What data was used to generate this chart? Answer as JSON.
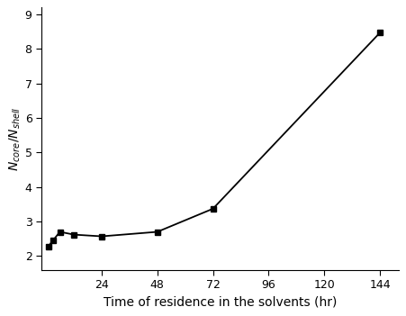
{
  "x": [
    1,
    3,
    6,
    12,
    24,
    48,
    72,
    144
  ],
  "y": [
    2.28,
    2.45,
    2.7,
    2.62,
    2.57,
    2.7,
    3.37,
    8.47
  ],
  "marker": "s",
  "markersize": 5,
  "linewidth": 1.3,
  "color": "black",
  "xlabel": "Time of residence in the solvents (hr)",
  "ylabel": "$\\mathit{N}_{core}$/$\\mathit{N}_{shell}$",
  "xlim": [
    -2,
    152
  ],
  "ylim": [
    1.6,
    9.2
  ],
  "xticks": [
    24,
    48,
    72,
    96,
    120,
    144
  ],
  "yticks": [
    2,
    3,
    4,
    5,
    6,
    7,
    8,
    9
  ],
  "xlabel_fontsize": 10,
  "ylabel_fontsize": 10,
  "tick_fontsize": 9,
  "figsize": [
    4.51,
    3.51
  ],
  "dpi": 100
}
